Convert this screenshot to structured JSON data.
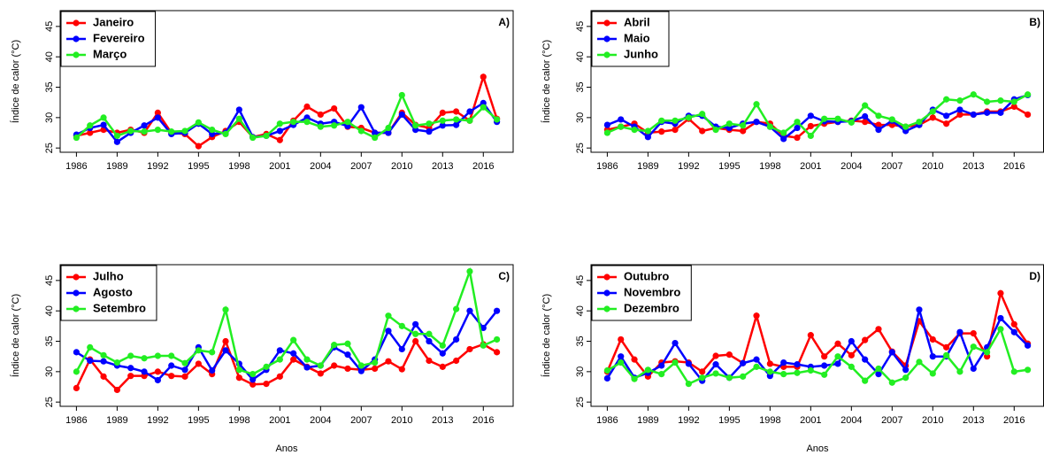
{
  "chart_data": [
    {
      "type": "line",
      "label": "A)",
      "ylabel": "Índice de calor (°C)",
      "legend": "upper left",
      "x": [
        1986,
        1987,
        1988,
        1989,
        1990,
        1991,
        1992,
        1993,
        1994,
        1995,
        1996,
        1997,
        1998,
        1999,
        2000,
        2001,
        2002,
        2003,
        2004,
        2005,
        2006,
        2007,
        2008,
        2009,
        2010,
        2011,
        2012,
        2013,
        2014,
        2015,
        2016,
        2017
      ],
      "xlim": [
        1984.8,
        2018.2
      ],
      "ylim": [
        24.3,
        47.6
      ],
      "xticks": [
        1986,
        1989,
        1992,
        1995,
        1998,
        2001,
        2004,
        2007,
        2010,
        2013,
        2016
      ],
      "yticks": [
        25,
        30,
        35,
        40,
        45
      ],
      "series": [
        {
          "name": "Janeiro",
          "color": "#ff0000",
          "values": [
            27,
            27.5,
            28,
            27.5,
            28,
            27.5,
            30.8,
            27.5,
            27.3,
            25.3,
            26.8,
            27.8,
            29.3,
            26.8,
            27.3,
            26.3,
            29.5,
            31.8,
            30.5,
            31.5,
            28.5,
            28.3,
            27.5,
            27.5,
            30.8,
            28.8,
            28.3,
            30.8,
            31,
            29.5,
            36.7,
            29.8
          ]
        },
        {
          "name": "Fevereiro",
          "color": "#0000ff",
          "values": [
            27.2,
            28.3,
            28.8,
            26,
            27.5,
            28.7,
            30,
            27.3,
            27.5,
            29,
            27.3,
            27.5,
            31.3,
            26.8,
            27,
            27.8,
            28.8,
            30,
            29,
            29.3,
            28.6,
            31.7,
            27.5,
            27.5,
            30.5,
            28,
            27.7,
            28.7,
            28.8,
            31,
            32.4,
            29.3
          ]
        },
        {
          "name": "Março",
          "color": "#22ee22",
          "values": [
            26.7,
            28.7,
            30,
            27,
            27.8,
            27.7,
            28,
            27.7,
            27.8,
            29.2,
            28,
            27.3,
            29.8,
            26.7,
            27,
            29,
            29.3,
            29.3,
            28.5,
            28.7,
            29.3,
            27.8,
            26.7,
            28.3,
            33.7,
            28.7,
            29,
            29.5,
            29.7,
            29.5,
            31.7,
            29.7
          ]
        }
      ]
    },
    {
      "type": "line",
      "label": "B)",
      "ylabel": "Índice de calor (°C)",
      "legend": "upper left",
      "x": [
        1986,
        1987,
        1988,
        1989,
        1990,
        1991,
        1992,
        1993,
        1994,
        1995,
        1996,
        1997,
        1998,
        1999,
        2000,
        2001,
        2002,
        2003,
        2004,
        2005,
        2006,
        2007,
        2008,
        2009,
        2010,
        2011,
        2012,
        2013,
        2014,
        2015,
        2016,
        2017
      ],
      "xlim": [
        1984.8,
        2018.2
      ],
      "ylim": [
        24.3,
        47.6
      ],
      "xticks": [
        1986,
        1989,
        1992,
        1995,
        1998,
        2001,
        2004,
        2007,
        2010,
        2013,
        2016
      ],
      "yticks": [
        25,
        30,
        35,
        40,
        45
      ],
      "series": [
        {
          "name": "Abril",
          "color": "#ff0000",
          "values": [
            28,
            28.5,
            29,
            27.5,
            27.7,
            28,
            29.8,
            27.8,
            28.3,
            28,
            27.8,
            29.3,
            29,
            27,
            26.7,
            28.6,
            29,
            29.3,
            29.5,
            29.3,
            28.8,
            28.8,
            28.5,
            28.8,
            30,
            29,
            30.5,
            30.5,
            31,
            31,
            31.8,
            30.5
          ]
        },
        {
          "name": "Maio",
          "color": "#0000ff",
          "values": [
            28.8,
            29.7,
            28.5,
            26.8,
            29.3,
            29,
            30.3,
            30.3,
            28.5,
            28.3,
            29,
            29.3,
            28.5,
            26.5,
            28.3,
            30.3,
            29.4,
            29.3,
            29.4,
            30.2,
            28,
            29.5,
            27.8,
            28.8,
            31.3,
            30.3,
            31.3,
            30.5,
            30.8,
            30.8,
            33,
            33.7
          ]
        },
        {
          "name": "Junho",
          "color": "#22ee22",
          "values": [
            27.5,
            28.5,
            28,
            27.8,
            29.5,
            29.5,
            30,
            30.6,
            28,
            29,
            28.7,
            32.2,
            28.5,
            27.5,
            29.3,
            27,
            29.8,
            29.8,
            29.2,
            32,
            30.3,
            29.7,
            28.5,
            29.3,
            31,
            33,
            32.8,
            33.8,
            32.6,
            32.8,
            32.6,
            33.8
          ]
        }
      ]
    },
    {
      "type": "line",
      "label": "C)",
      "ylabel": "Índice de calor (°C)",
      "xlabel": "Anos",
      "legend": "upper left",
      "x": [
        1986,
        1987,
        1988,
        1989,
        1990,
        1991,
        1992,
        1993,
        1994,
        1995,
        1996,
        1997,
        1998,
        1999,
        2000,
        2001,
        2002,
        2003,
        2004,
        2005,
        2006,
        2007,
        2008,
        2009,
        2010,
        2011,
        2012,
        2013,
        2014,
        2015,
        2016,
        2017
      ],
      "xlim": [
        1984.8,
        2018.2
      ],
      "ylim": [
        24.3,
        47.6
      ],
      "xticks": [
        1986,
        1989,
        1992,
        1995,
        1998,
        2001,
        2004,
        2007,
        2010,
        2013,
        2016
      ],
      "yticks": [
        25,
        30,
        35,
        40,
        45
      ],
      "series": [
        {
          "name": "Julho",
          "color": "#ff0000",
          "values": [
            27.3,
            32,
            29.2,
            27,
            29.3,
            29.3,
            30,
            29.3,
            29.2,
            31.3,
            29.6,
            35,
            29,
            27.9,
            28,
            29.2,
            32,
            30.8,
            29.7,
            31,
            30.5,
            30.3,
            30.5,
            31.7,
            30.4,
            35,
            31.8,
            30.8,
            31.8,
            33.7,
            34.5,
            33.2
          ]
        },
        {
          "name": "Agosto",
          "color": "#0000ff",
          "values": [
            33.2,
            31.8,
            31.7,
            31,
            30.6,
            30,
            28.6,
            31,
            30.3,
            34,
            30.2,
            33.5,
            31.3,
            28.7,
            30.3,
            33.5,
            33,
            30.7,
            31,
            34,
            32.8,
            30.1,
            32,
            36.7,
            33.7,
            37.8,
            35,
            33,
            35.3,
            40,
            37.2,
            40
          ]
        },
        {
          "name": "Setembro",
          "color": "#22ee22",
          "values": [
            30,
            34,
            32.7,
            31.5,
            32.6,
            32.2,
            32.6,
            32.6,
            31.4,
            33.5,
            33.2,
            40.2,
            30.3,
            29.6,
            30.8,
            32,
            35.2,
            32,
            31,
            34.4,
            34.6,
            31,
            31.5,
            39.2,
            37.5,
            36.2,
            36.2,
            34.3,
            40.3,
            46.5,
            34.3,
            35.3
          ]
        }
      ]
    },
    {
      "type": "line",
      "label": "D)",
      "ylabel": "Índice de calor (°C)",
      "xlabel": "Anos",
      "legend": "upper left",
      "x": [
        1986,
        1987,
        1988,
        1989,
        1990,
        1991,
        1992,
        1993,
        1994,
        1995,
        1996,
        1997,
        1998,
        1999,
        2000,
        2001,
        2002,
        2003,
        2004,
        2005,
        2006,
        2007,
        2008,
        2009,
        2010,
        2011,
        2012,
        2013,
        2014,
        2015,
        2016,
        2017
      ],
      "xlim": [
        1984.8,
        2018.2
      ],
      "ylim": [
        24.3,
        47.6
      ],
      "xticks": [
        1986,
        1989,
        1992,
        1995,
        1998,
        2001,
        2004,
        2007,
        2010,
        2013,
        2016
      ],
      "yticks": [
        25,
        30,
        35,
        40,
        45
      ],
      "series": [
        {
          "name": "Outubro",
          "color": "#ff0000",
          "values": [
            30,
            35.3,
            32,
            29.2,
            31.5,
            31.7,
            31.5,
            30,
            32.6,
            32.8,
            31.4,
            39.2,
            31.3,
            30.8,
            30.8,
            36,
            32.5,
            34.6,
            32.7,
            35.2,
            37,
            33.3,
            31,
            38.3,
            35.3,
            34,
            36.3,
            36.3,
            32.5,
            42.9,
            37.8,
            34.6
          ]
        },
        {
          "name": "Novembro",
          "color": "#0000ff",
          "values": [
            28.9,
            32.5,
            29,
            29.8,
            31,
            34.7,
            31.3,
            28.5,
            31.2,
            29,
            31.4,
            32,
            29.3,
            31.5,
            31.2,
            30.8,
            31,
            31.3,
            35,
            32,
            29.6,
            33.2,
            30.3,
            40.2,
            32.5,
            32.5,
            36.5,
            30.5,
            34,
            38.8,
            36.5,
            34.3
          ]
        },
        {
          "name": "Dezembro",
          "color": "#22ee22",
          "values": [
            30.2,
            31.5,
            28.8,
            30.3,
            29.6,
            31.5,
            28,
            29,
            29.7,
            29,
            29.2,
            30.8,
            30,
            29.6,
            29.8,
            30.2,
            29.5,
            32.5,
            30.8,
            28.5,
            30.5,
            28.2,
            29,
            31.6,
            29.7,
            32.7,
            30,
            34.1,
            33.2,
            37,
            30,
            30.3
          ]
        }
      ]
    }
  ]
}
